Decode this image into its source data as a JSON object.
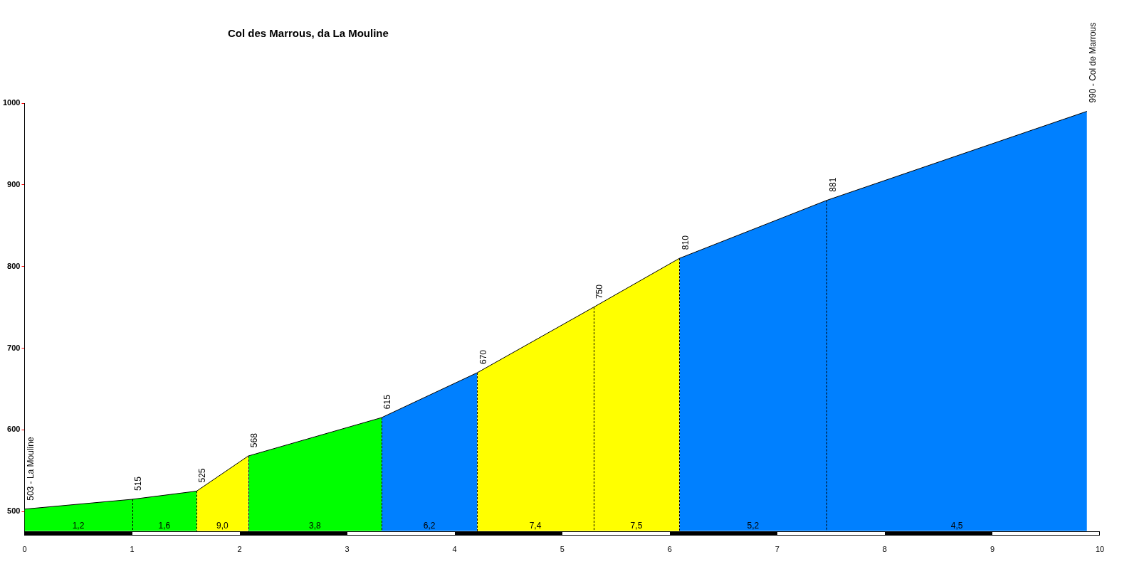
{
  "chart_data": {
    "type": "area",
    "title": "Col des Marrous, da La Mouline",
    "xlim": [
      0,
      10
    ],
    "xticks": [
      0,
      1,
      2,
      3,
      4,
      5,
      6,
      7,
      8,
      9,
      10
    ],
    "ylim": [
      476,
      1000
    ],
    "yticks": [
      500,
      600,
      700,
      800,
      900,
      1000
    ],
    "marker": "none",
    "series": [
      {
        "color": "#00ff00",
        "x": [
          0,
          1,
          1.6
        ],
        "values": [
          503,
          515,
          525
        ]
      },
      {
        "color": "#ffff00",
        "x": [
          1.6,
          2.08
        ],
        "values": [
          525,
          568
        ]
      },
      {
        "color": "#00ff00",
        "x": [
          2.08,
          3.32
        ],
        "values": [
          568,
          615
        ]
      },
      {
        "color": "#0080ff",
        "x": [
          3.32,
          4.21
        ],
        "values": [
          615,
          670
        ]
      },
      {
        "color": "#ffff00",
        "x": [
          4.21,
          5.29,
          6.09
        ],
        "values": [
          670,
          750,
          810
        ]
      },
      {
        "color": "#0080ff",
        "x": [
          6.09,
          7.46,
          9.88
        ],
        "values": [
          810,
          881,
          990
        ]
      },
      {
        "type": "line",
        "color": "#000000",
        "x": [
          0,
          1,
          1.6,
          2.08,
          3.32,
          4.21,
          5.29,
          6.09,
          7.46,
          9.88
        ],
        "values": [
          503,
          515,
          525,
          568,
          615,
          670,
          750,
          810,
          881,
          990
        ],
        "value_labels": [
          "503 - La Mouline",
          "515",
          "525",
          "568",
          "615",
          "670",
          "750",
          "810",
          "881",
          "990 - Col de Marrous"
        ]
      }
    ],
    "annotations": [
      "1,2",
      "1,6",
      "9,0",
      "3,8",
      "6,2",
      "7,4",
      "7,5",
      "5,2",
      "4,5"
    ]
  }
}
